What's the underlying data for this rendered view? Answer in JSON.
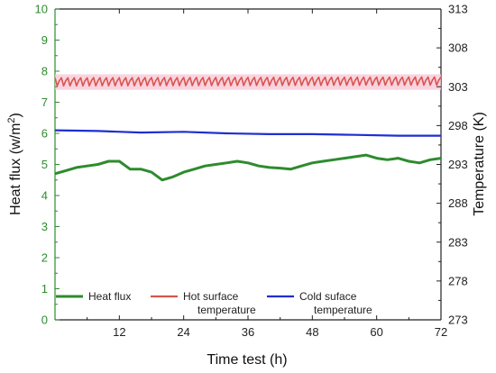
{
  "chart_data": {
    "type": "line",
    "xlabel": "Time test (h)",
    "ylabel_left": "Heat flux (w/m²)",
    "ylabel_left_base": "Heat flux (w/m",
    "ylabel_left_sup": "2",
    "ylabel_left_tail": ")",
    "ylabel_right": "Temperature (K)",
    "xlim": [
      0,
      72
    ],
    "ylim_left": [
      0,
      10
    ],
    "ylim_right": [
      273,
      313
    ],
    "x_ticks": [
      "12",
      "24",
      "36",
      "48",
      "60",
      "72"
    ],
    "y_left_ticks": [
      "0",
      "1",
      "2",
      "3",
      "4",
      "5",
      "6",
      "7",
      "8",
      "9",
      "10"
    ],
    "y_right_ticks": [
      "273",
      "278",
      "283",
      "288",
      "293",
      "298",
      "303",
      "308",
      "313"
    ],
    "legend": {
      "placement": "bottom",
      "entries": [
        {
          "key": "heat_flux",
          "lines": [
            "Heat flux"
          ]
        },
        {
          "key": "hot_surface",
          "lines": [
            "Hot surface",
            "temperature"
          ]
        },
        {
          "key": "cold_surface",
          "lines": [
            "Cold suface",
            "temperature"
          ]
        }
      ]
    },
    "series": [
      {
        "key": "heat_flux",
        "axis": "left",
        "color": "#2e8b2e",
        "x": [
          0,
          2,
          4,
          6,
          8,
          10,
          12,
          14,
          16,
          18,
          20,
          22,
          24,
          26,
          28,
          30,
          32,
          34,
          36,
          38,
          40,
          42,
          44,
          46,
          48,
          50,
          52,
          54,
          56,
          58,
          60,
          62,
          64,
          66,
          68,
          70,
          72
        ],
        "y": [
          4.7,
          4.8,
          4.9,
          4.95,
          5.0,
          5.1,
          5.1,
          4.85,
          4.85,
          4.75,
          4.5,
          4.6,
          4.75,
          4.85,
          4.95,
          5.0,
          5.05,
          5.1,
          5.05,
          4.95,
          4.9,
          4.88,
          4.85,
          4.95,
          5.05,
          5.1,
          5.15,
          5.2,
          5.25,
          5.3,
          5.2,
          5.15,
          5.2,
          5.1,
          5.05,
          5.15,
          5.2
        ]
      },
      {
        "key": "hot_surface",
        "axis": "right",
        "color": "#d9544d",
        "x": [
          0,
          72
        ],
        "y": [
          303.6,
          303.7
        ],
        "band": [
          302.6,
          304.6
        ]
      },
      {
        "key": "cold_surface",
        "axis": "right",
        "color": "#1f2fd0",
        "x": [
          0,
          8,
          16,
          24,
          32,
          40,
          48,
          56,
          64,
          72
        ],
        "y": [
          297.4,
          297.3,
          297.1,
          297.2,
          297.0,
          296.9,
          296.9,
          296.8,
          296.7,
          296.7
        ]
      }
    ]
  }
}
